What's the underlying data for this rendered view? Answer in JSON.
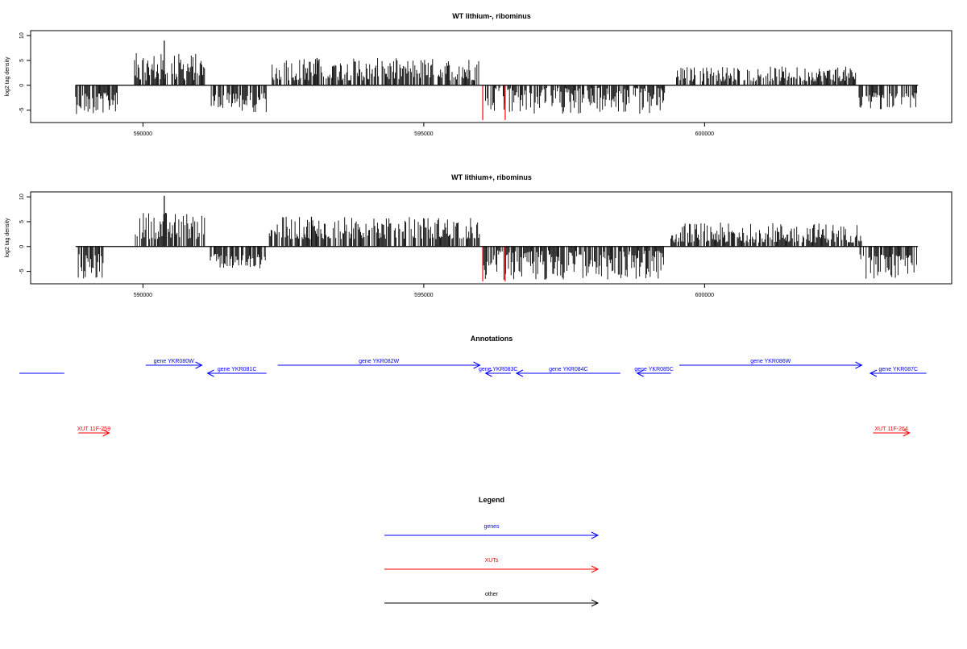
{
  "colors": {
    "gene": "#0000ff",
    "xut": "#ff0000",
    "other": "#000000",
    "axis": "#000000"
  },
  "chart_data": [
    {
      "type": "bar",
      "title": "WT lithium-, ribominus",
      "ylabel": "log2 tag density",
      "xticks": [
        590000,
        595000,
        600000
      ],
      "xtick_labels": [
        "590000",
        "595000",
        "600000"
      ],
      "yticks": [
        -5,
        0,
        5,
        10
      ],
      "ytick_labels": [
        "-5",
        "0",
        "5",
        "10"
      ],
      "ylim": [
        -7.5,
        11
      ],
      "xlim": [
        588000,
        604400
      ],
      "segments": [
        {
          "x0": 588800,
          "x1": 589550,
          "sign": -1,
          "min": 1.5,
          "max": 5.8
        },
        {
          "x0": 589850,
          "x1": 591100,
          "sign": 1,
          "min": 1.0,
          "max": 6.5
        },
        {
          "x0": 591200,
          "x1": 592200,
          "sign": -1,
          "min": 1.5,
          "max": 5.5
        },
        {
          "x0": 592300,
          "x1": 596000,
          "sign": 1,
          "min": 1.0,
          "max": 5.5
        },
        {
          "x0": 596100,
          "x1": 599300,
          "sign": -1,
          "min": 0.5,
          "max": 6.0
        },
        {
          "x0": 599500,
          "x1": 602700,
          "sign": 1,
          "min": 0.8,
          "max": 3.8
        },
        {
          "x0": 602750,
          "x1": 603800,
          "sign": -1,
          "min": 1.5,
          "max": 5.0
        }
      ],
      "peaks": [
        {
          "x": 590380,
          "y": 9.0
        },
        {
          "x": 593100,
          "y": 5.5
        }
      ],
      "red_bars": [
        {
          "x": 596050,
          "y": -7.0
        },
        {
          "x": 596450,
          "y": -7.0
        }
      ]
    },
    {
      "type": "bar",
      "title": "WT lithium+, ribominus",
      "ylabel": "log2 tag density",
      "xticks": [
        590000,
        595000,
        600000
      ],
      "xtick_labels": [
        "590000",
        "595000",
        "600000"
      ],
      "yticks": [
        -5,
        0,
        5,
        10
      ],
      "ytick_labels": [
        "-5",
        "0",
        "5",
        "10"
      ],
      "ylim": [
        -7.5,
        11
      ],
      "xlim": [
        588000,
        604400
      ],
      "segments": [
        {
          "x0": 588800,
          "x1": 589300,
          "sign": -1,
          "min": 1.5,
          "max": 6.5
        },
        {
          "x0": 589850,
          "x1": 591100,
          "sign": 1,
          "min": 1.5,
          "max": 7.0
        },
        {
          "x0": 591200,
          "x1": 592200,
          "sign": -1,
          "min": 1.5,
          "max": 4.5
        },
        {
          "x0": 592250,
          "x1": 596000,
          "sign": 1,
          "min": 1.5,
          "max": 6.0
        },
        {
          "x0": 596050,
          "x1": 599300,
          "sign": -1,
          "min": 0.8,
          "max": 6.8
        },
        {
          "x0": 599400,
          "x1": 602800,
          "sign": 1,
          "min": 0.8,
          "max": 4.8
        },
        {
          "x0": 602750,
          "x1": 603800,
          "sign": -1,
          "min": 1.5,
          "max": 6.5
        }
      ],
      "peaks": [
        {
          "x": 590380,
          "y": 10.2
        },
        {
          "x": 593000,
          "y": 6.0
        }
      ],
      "red_bars": [
        {
          "x": 596050,
          "y": -7.0
        },
        {
          "x": 596450,
          "y": -7.0
        }
      ]
    }
  ],
  "annotations": {
    "title": "Annotations",
    "genes": [
      {
        "label": "gene YKR080W",
        "x0": 590050,
        "x1": 591050,
        "dir": "right",
        "row": 1
      },
      {
        "label": "gene YKR081C",
        "x0": 591150,
        "x1": 592200,
        "dir": "left",
        "row": 2
      },
      {
        "label": "gene YKR082W",
        "x0": 592400,
        "x1": 596000,
        "dir": "right",
        "row": 1
      },
      {
        "label": "gene YKR083C",
        "x0": 596100,
        "x1": 596550,
        "dir": "left",
        "row": 2
      },
      {
        "label": "gene YKR084C",
        "x0": 596650,
        "x1": 598500,
        "dir": "left",
        "row": 2
      },
      {
        "label": "gene YKR085C",
        "x0": 598800,
        "x1": 599400,
        "dir": "left",
        "row": 2
      },
      {
        "label": "gene YKR086W",
        "x0": 599550,
        "x1": 602800,
        "dir": "right",
        "row": 1
      },
      {
        "label": "gene YKR087C",
        "x0": 602950,
        "x1": 603950,
        "dir": "left",
        "row": 2
      }
    ],
    "partial_gene": {
      "x0": 587800,
      "x1": 588600
    },
    "xuts": [
      {
        "label": "XUT 11F-259",
        "x0": 588850,
        "x1": 589400,
        "dir": "right"
      },
      {
        "label": "XUT 11F-264",
        "x0": 603000,
        "x1": 603650,
        "dir": "right"
      }
    ]
  },
  "legend": {
    "title": "Legend",
    "items": [
      {
        "label": "genes",
        "color": "#0000ff"
      },
      {
        "label": "XUTs",
        "color": "#ff0000"
      },
      {
        "label": "other",
        "color": "#000000"
      }
    ]
  }
}
